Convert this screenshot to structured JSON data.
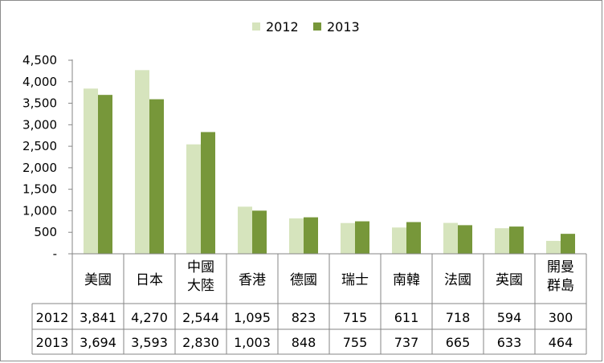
{
  "chart_data": {
    "type": "bar",
    "title": "",
    "xlabel": "",
    "ylabel": "",
    "ylim": [
      0,
      4500
    ],
    "y_ticks": [
      "-",
      "500",
      "1,000",
      "1,500",
      "2,000",
      "2,500",
      "3,000",
      "3,500",
      "4,000",
      "4,500"
    ],
    "grid": false,
    "legend_position": "top-center",
    "categories": [
      "美國",
      "日本",
      "中國\n大陸",
      "香港",
      "德國",
      "瑞士",
      "南韓",
      "法國",
      "英國",
      "開曼\n群島"
    ],
    "series": [
      {
        "name": "2012",
        "color": "#d6e4bd",
        "values": [
          3841,
          4270,
          2544,
          1095,
          823,
          715,
          611,
          718,
          594,
          300
        ],
        "labels": [
          "3,841",
          "4,270",
          "2,544",
          "1,095",
          "823",
          "715",
          "611",
          "718",
          "594",
          "300"
        ]
      },
      {
        "name": "2013",
        "color": "#77973a",
        "values": [
          3694,
          3593,
          2830,
          1003,
          848,
          755,
          737,
          665,
          633,
          464
        ],
        "labels": [
          "3,694",
          "3,593",
          "2,830",
          "1,003",
          "848",
          "755",
          "737",
          "665",
          "633",
          "464"
        ]
      }
    ],
    "data_table": true
  }
}
